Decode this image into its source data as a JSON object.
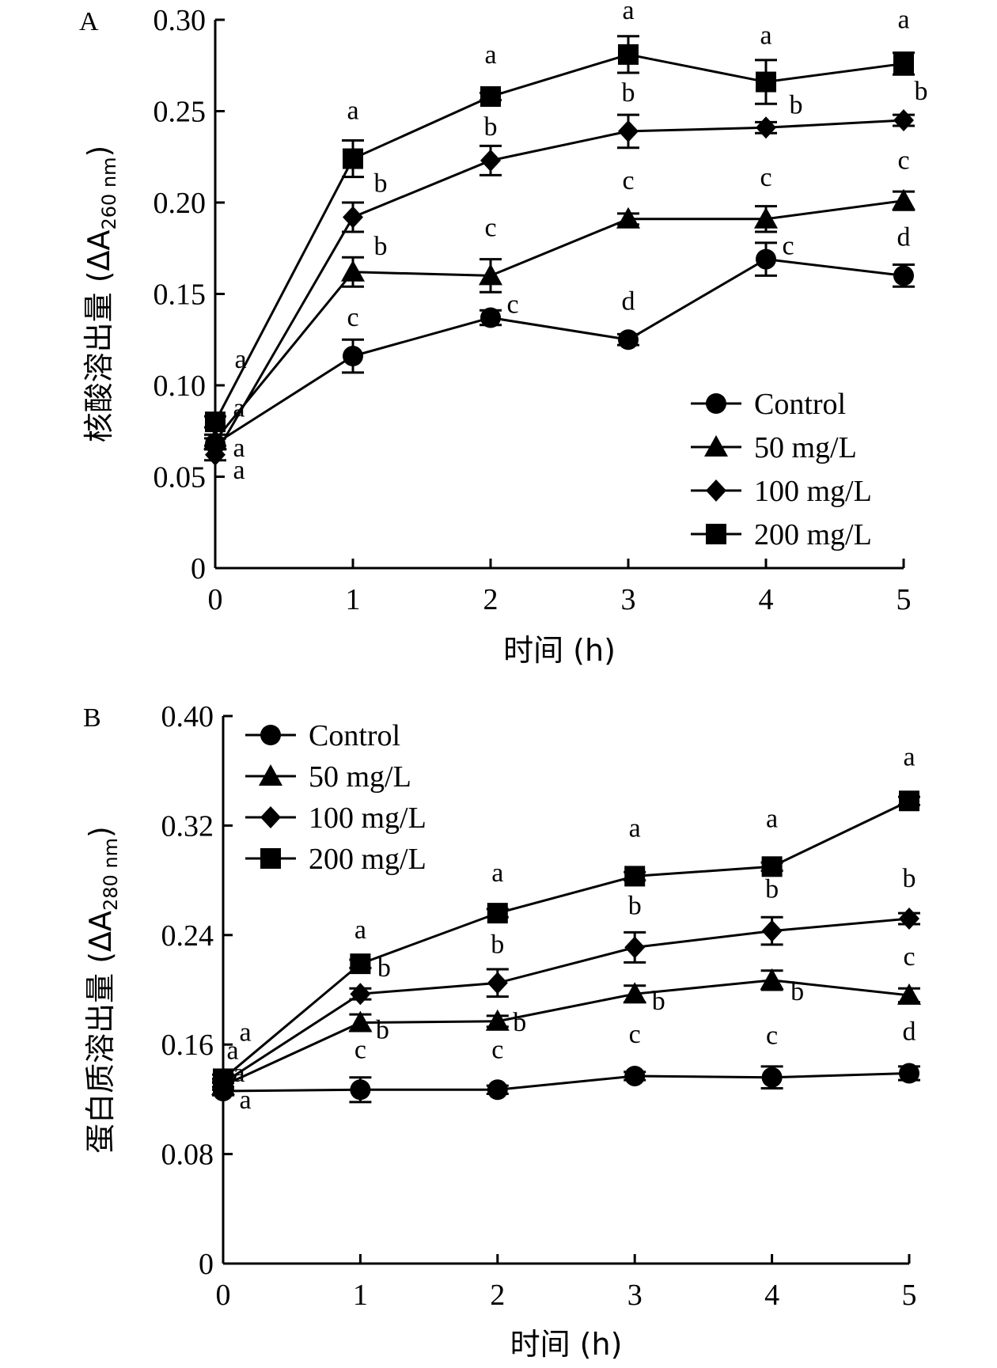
{
  "chart_data": [
    {
      "panel": "A",
      "type": "line",
      "title": "",
      "xlabel": "时间 (h)",
      "ylabel_main": "核酸溶出量 (ΔA",
      "ylabel_sub": "260 nm",
      "ylabel_close": ")",
      "x": [
        0,
        1,
        2,
        3,
        4,
        5
      ],
      "xticks": [
        "0",
        "1",
        "2",
        "3",
        "4",
        "5"
      ],
      "yticks": [
        "0",
        "0.05",
        "0.10",
        "0.15",
        "0.20",
        "0.25",
        "0.30"
      ],
      "ytick_values": [
        0,
        0.05,
        0.1,
        0.15,
        0.2,
        0.25,
        0.3
      ],
      "xlim": [
        0,
        5
      ],
      "ylim": [
        0,
        0.3
      ],
      "grid": false,
      "legend_position": "bottom-right",
      "series": [
        {
          "name": "Control",
          "marker": "circle",
          "values": [
            0.068,
            0.116,
            0.137,
            0.125,
            0.169,
            0.16
          ],
          "errors": [
            0.003,
            0.009,
            0.004,
            0.003,
            0.009,
            0.006
          ],
          "letters": [
            "a",
            "c",
            "c",
            "d",
            "c",
            "d"
          ]
        },
        {
          "name": "50 mg/L",
          "marker": "triangle",
          "values": [
            0.07,
            0.162,
            0.16,
            0.191,
            0.191,
            0.201
          ],
          "errors": [
            0.003,
            0.008,
            0.009,
            0.003,
            0.007,
            0.005
          ],
          "letters": [
            "a",
            "b",
            "c",
            "c",
            "c",
            "c"
          ]
        },
        {
          "name": "100 mg/L",
          "marker": "diamond",
          "values": [
            0.062,
            0.192,
            0.223,
            0.239,
            0.241,
            0.245
          ],
          "errors": [
            0.003,
            0.008,
            0.008,
            0.009,
            0.003,
            0.003
          ],
          "letters": [
            "a",
            "b",
            "b",
            "b",
            "b",
            "b"
          ]
        },
        {
          "name": "200 mg/L",
          "marker": "square",
          "values": [
            0.08,
            0.224,
            0.258,
            0.281,
            0.266,
            0.276
          ],
          "errors": [
            0.003,
            0.01,
            0.002,
            0.01,
            0.012,
            0.006
          ],
          "letters": [
            "a",
            "a",
            "a",
            "a",
            "a",
            "a"
          ]
        }
      ]
    },
    {
      "panel": "B",
      "type": "line",
      "title": "",
      "xlabel": "时间 (h)",
      "ylabel_main": "蛋白质溶出量 (ΔA",
      "ylabel_sub": "280 nm",
      "ylabel_close": ")",
      "x": [
        0,
        1,
        2,
        3,
        4,
        5
      ],
      "xticks": [
        "0",
        "1",
        "2",
        "3",
        "4",
        "5"
      ],
      "yticks": [
        "0",
        "0.08",
        "0.16",
        "0.24",
        "0.32",
        "0.40"
      ],
      "ytick_values": [
        0,
        0.08,
        0.16,
        0.24,
        0.32,
        0.4
      ],
      "xlim": [
        0,
        5
      ],
      "ylim": [
        0,
        0.4
      ],
      "grid": false,
      "legend_position": "top-left",
      "series": [
        {
          "name": "Control",
          "marker": "circle",
          "values": [
            0.126,
            0.127,
            0.127,
            0.137,
            0.136,
            0.139
          ],
          "errors": [
            0.003,
            0.009,
            0.003,
            0.003,
            0.008,
            0.005
          ],
          "letters": [
            "a",
            "c",
            "c",
            "c",
            "c",
            "d"
          ]
        },
        {
          "name": "50 mg/L",
          "marker": "triangle",
          "values": [
            0.13,
            0.176,
            0.177,
            0.197,
            0.207,
            0.196
          ],
          "errors": [
            0.003,
            0.006,
            0.004,
            0.006,
            0.007,
            0.005
          ],
          "letters": [
            "a",
            "b",
            "b",
            "b",
            "b",
            "c"
          ]
        },
        {
          "name": "100 mg/L",
          "marker": "diamond",
          "values": [
            0.132,
            0.197,
            0.205,
            0.231,
            0.243,
            0.252
          ],
          "errors": [
            0.003,
            0.004,
            0.01,
            0.011,
            0.01,
            0.004
          ],
          "letters": [
            "a",
            "b",
            "b",
            "b",
            "b",
            "b"
          ]
        },
        {
          "name": "200 mg/L",
          "marker": "square",
          "values": [
            0.135,
            0.219,
            0.256,
            0.283,
            0.29,
            0.338
          ],
          "errors": [
            0.003,
            0.003,
            0.003,
            0.003,
            0.003,
            0.003
          ],
          "letters": [
            "a",
            "a",
            "a",
            "a",
            "a",
            "a"
          ]
        }
      ]
    }
  ]
}
